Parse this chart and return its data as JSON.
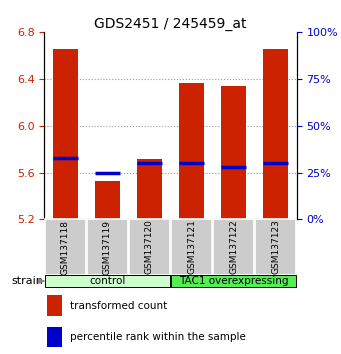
{
  "title": "GDS2451 / 245459_at",
  "samples": [
    "GSM137118",
    "GSM137119",
    "GSM137120",
    "GSM137121",
    "GSM137122",
    "GSM137123"
  ],
  "bar_bottom": 5.2,
  "bar_tops": [
    6.65,
    5.53,
    5.72,
    6.36,
    6.34,
    6.65
  ],
  "percentile_values": [
    33,
    25,
    30,
    30,
    28,
    30
  ],
  "ylim_left": [
    5.2,
    6.8
  ],
  "ylim_right": [
    0,
    100
  ],
  "yticks_left": [
    5.2,
    5.6,
    6.0,
    6.4,
    6.8
  ],
  "yticks_right": [
    0,
    25,
    50,
    75,
    100
  ],
  "bar_color": "#cc2200",
  "percentile_color": "#0000cc",
  "groups": [
    {
      "label": "control",
      "samples": [
        0,
        1,
        2
      ],
      "color": "#ccffcc"
    },
    {
      "label": "TAC1 overexpressing",
      "samples": [
        3,
        4,
        5
      ],
      "color": "#55ee55"
    }
  ],
  "sample_box_color": "#cccccc",
  "legend_items": [
    {
      "color": "#cc2200",
      "label": "transformed count"
    },
    {
      "color": "#0000cc",
      "label": "percentile rank within the sample"
    }
  ],
  "grid_lines": [
    5.6,
    6.0,
    6.4
  ],
  "bar_width": 0.6
}
